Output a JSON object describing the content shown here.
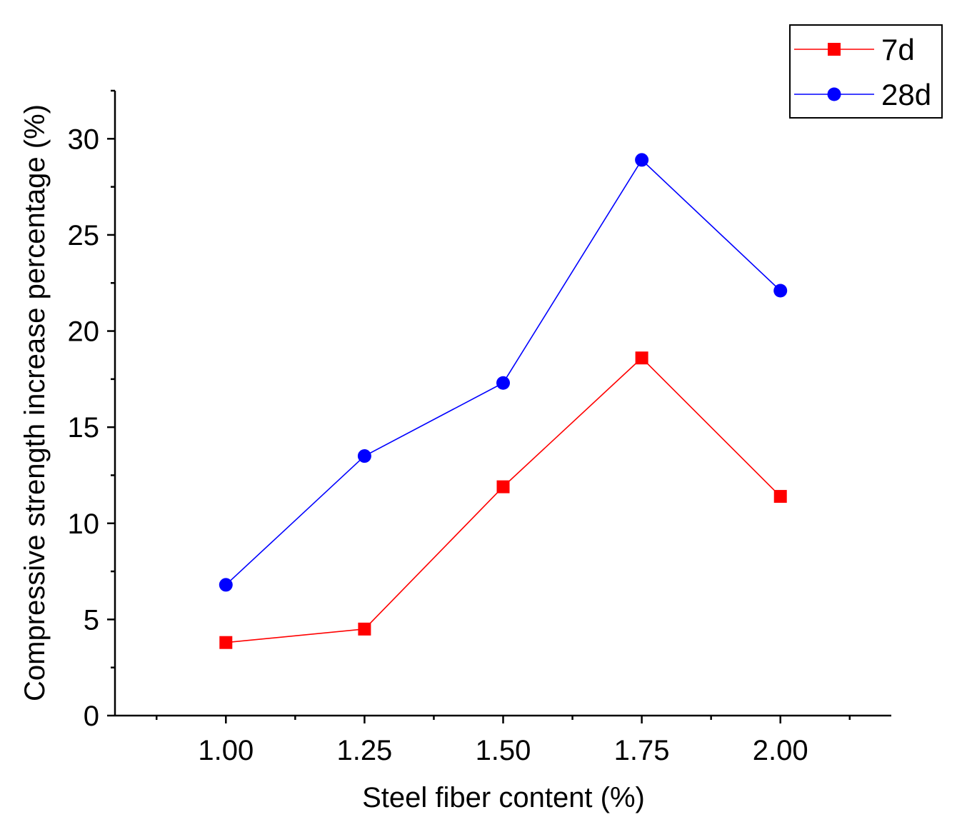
{
  "chart_data": {
    "type": "line",
    "x": [
      1.0,
      1.25,
      1.5,
      1.75,
      2.0
    ],
    "x_tick_labels": [
      "1.00",
      "1.25",
      "1.50",
      "1.75",
      "2.00"
    ],
    "y_ticks": [
      0,
      5,
      10,
      15,
      20,
      25,
      30
    ],
    "y_tick_labels": [
      "0",
      "5",
      "10",
      "15",
      "20",
      "25",
      "30"
    ],
    "xlim": [
      0.8,
      2.2
    ],
    "ylim": [
      0,
      32.5
    ],
    "xlabel": "Steel fiber content (%)",
    "ylabel": "Compressive strength increase percentage (%)",
    "title": "",
    "grid": false,
    "legend_position": "top-right",
    "series": [
      {
        "name": "7d",
        "color": "#ff0000",
        "marker": "square",
        "values": [
          3.8,
          4.5,
          11.9,
          18.6,
          11.4
        ]
      },
      {
        "name": "28d",
        "color": "#0000ff",
        "marker": "circle",
        "values": [
          6.8,
          13.5,
          17.3,
          28.9,
          22.1
        ]
      }
    ]
  }
}
